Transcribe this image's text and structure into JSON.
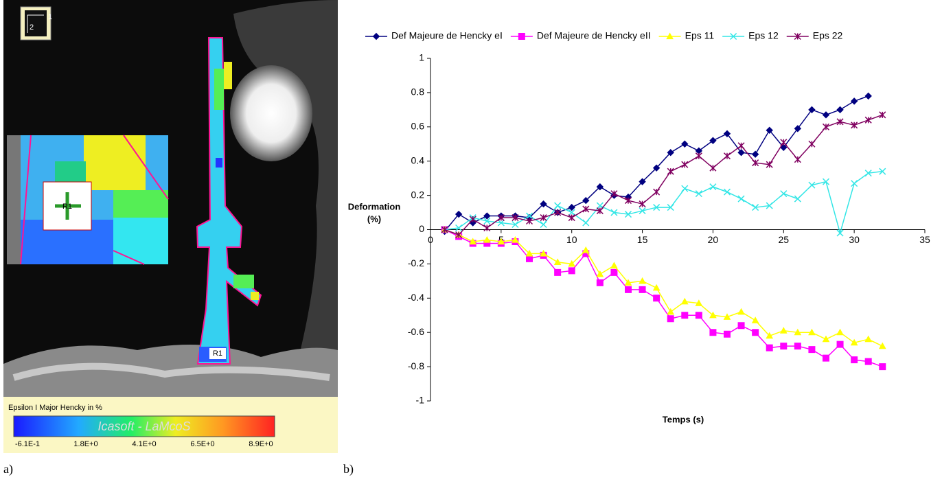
{
  "panel_a": {
    "label": "a)",
    "axis_1": "1",
    "axis_2": "2",
    "region_label": "R1",
    "inset_label": "R1",
    "colorbar": {
      "title": "Epsilon I Major Hencky in %",
      "watermark": "Icasoft - LaMcoS",
      "ticks": [
        "-6.1E-1",
        "1.8E+0",
        "4.1E+0",
        "6.5E+0",
        "8.9E+0"
      ]
    }
  },
  "panel_b_label": "b)",
  "chart_data": {
    "type": "line",
    "xlabel": "Temps (s)",
    "ylabel": [
      "Deformation",
      "(%)"
    ],
    "x": [
      1,
      2,
      3,
      4,
      5,
      6,
      7,
      8,
      9,
      10,
      11,
      12,
      13,
      14,
      15,
      16,
      17,
      18,
      19,
      20,
      21,
      22,
      23,
      24,
      25,
      26,
      27,
      28,
      29,
      30,
      31,
      32
    ],
    "xlim": [
      0,
      35
    ],
    "xticks": [
      0,
      5,
      10,
      15,
      20,
      25,
      30,
      35
    ],
    "ylim": [
      -1,
      1
    ],
    "yticks": [
      1,
      0.8,
      0.6,
      0.4,
      0.2,
      0,
      -0.2,
      -0.4,
      -0.6,
      -0.8,
      -1
    ],
    "legend": "top",
    "series": [
      {
        "name": "Def Majeure de Hencky eI",
        "color": "#000080",
        "marker": "diamond",
        "values": [
          -0.01,
          0.09,
          0.04,
          0.08,
          0.08,
          0.08,
          0.07,
          0.15,
          0.1,
          0.13,
          0.17,
          0.25,
          0.2,
          0.19,
          0.28,
          0.36,
          0.45,
          0.5,
          0.46,
          0.52,
          0.56,
          0.45,
          0.44,
          0.58,
          0.48,
          0.59,
          0.7,
          0.67,
          0.7,
          0.75,
          0.78,
          null
        ]
      },
      {
        "name": "Def Majeure de Hencky eII",
        "color": "#ff00ff",
        "marker": "square",
        "values": [
          0,
          -0.04,
          -0.08,
          -0.08,
          -0.08,
          -0.07,
          -0.17,
          -0.15,
          -0.25,
          -0.24,
          -0.14,
          -0.31,
          -0.25,
          -0.35,
          -0.35,
          -0.4,
          -0.52,
          -0.5,
          -0.5,
          -0.6,
          -0.61,
          -0.56,
          -0.6,
          -0.69,
          -0.68,
          -0.68,
          -0.7,
          -0.75,
          -0.67,
          -0.76,
          -0.77,
          -0.8
        ]
      },
      {
        "name": "Eps 11",
        "color": "#ffff00",
        "marker": "triangle",
        "values": [
          0,
          -0.03,
          -0.07,
          -0.06,
          -0.07,
          -0.06,
          -0.14,
          -0.14,
          -0.19,
          -0.2,
          -0.12,
          -0.26,
          -0.21,
          -0.31,
          -0.3,
          -0.34,
          -0.48,
          -0.42,
          -0.43,
          -0.5,
          -0.51,
          -0.48,
          -0.53,
          -0.62,
          -0.59,
          -0.6,
          -0.6,
          -0.64,
          -0.6,
          -0.66,
          -0.64,
          -0.68
        ]
      },
      {
        "name": "Eps 12",
        "color": "#33e6e6",
        "marker": "x",
        "values": [
          0,
          0.01,
          0.07,
          0.05,
          0.04,
          0.03,
          0.08,
          0.03,
          0.14,
          0.1,
          0.04,
          0.14,
          0.1,
          0.09,
          0.11,
          0.13,
          0.13,
          0.24,
          0.21,
          0.25,
          0.22,
          0.18,
          0.13,
          0.14,
          0.21,
          0.18,
          0.26,
          0.28,
          -0.02,
          0.27,
          0.33,
          0.34
        ]
      },
      {
        "name": "Eps 22",
        "color": "#800060",
        "marker": "star",
        "values": [
          0,
          -0.03,
          0.06,
          0.01,
          0.07,
          0.07,
          0.05,
          0.07,
          0.1,
          0.07,
          0.12,
          0.11,
          0.21,
          0.17,
          0.15,
          0.22,
          0.34,
          0.38,
          0.43,
          0.36,
          0.43,
          0.49,
          0.39,
          0.38,
          0.51,
          0.41,
          0.5,
          0.6,
          0.63,
          0.61,
          0.64,
          0.67
        ]
      }
    ]
  }
}
